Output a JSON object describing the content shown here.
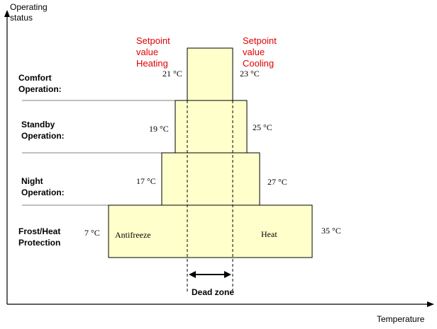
{
  "axes": {
    "y_label_line1": "Operating",
    "y_label_line2": "status",
    "x_label": "Temperature"
  },
  "setpoints": {
    "heating": [
      "Setpoint",
      "value",
      "Heating"
    ],
    "cooling": [
      "Setpoint",
      "value",
      "Cooling"
    ],
    "color": "#e00000"
  },
  "levels": [
    {
      "name_line1": "Comfort",
      "name_line2": "Operation:",
      "left_temp": "21 °C",
      "right_temp": "23 °C"
    },
    {
      "name_line1": "Standby",
      "name_line2": "Operation:",
      "left_temp": "19 °C",
      "right_temp": "25 °C"
    },
    {
      "name_line1": "Night",
      "name_line2": "Operation:",
      "left_temp": "17 °C",
      "right_temp": "27 °C"
    },
    {
      "name_line1": "Frost/Heat",
      "name_line2": "Protection",
      "left_temp": "7 °C",
      "right_temp": "35 °C"
    }
  ],
  "protection": {
    "left_label": "Antifreeze",
    "right_label": "Heat"
  },
  "dead_zone": {
    "label": "Dead zone"
  },
  "colors": {
    "box_fill": "#ffffcc",
    "line": "#000000",
    "separator": "#808080"
  }
}
